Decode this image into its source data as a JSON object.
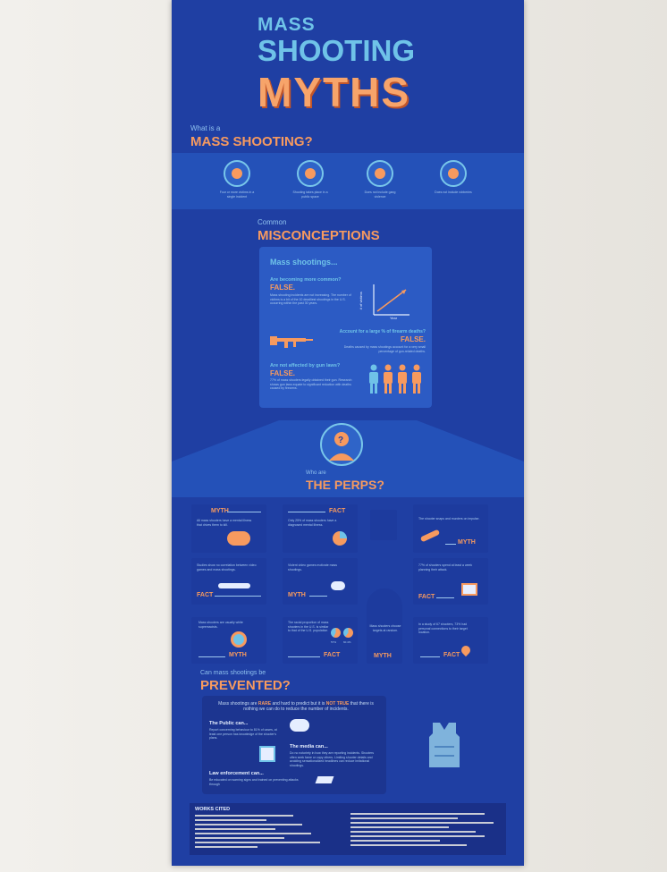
{
  "title": {
    "line1": "MASS",
    "line2": "SHOOTING",
    "line3": "MYTHS"
  },
  "definition": {
    "kicker": "What is a",
    "heading": "MASS SHOOTING?",
    "items": [
      {
        "icon": "four-victims-icon",
        "text": "Four or more victims in a single incident"
      },
      {
        "icon": "public-place-icon",
        "text": "Shooting takes place in a public space"
      },
      {
        "icon": "no-gang-icon",
        "text": "Does not include gang violence"
      },
      {
        "icon": "no-robbery-icon",
        "text": "Does not include robberies"
      }
    ]
  },
  "misconceptions": {
    "kicker": "Common",
    "heading": "MISCONCEPTIONS",
    "panel_title": "Mass shootings...",
    "q1": "Are becoming more common?",
    "a1": "FALSE.",
    "d1": "Mass shooting incidents are not increasing. The number of victims is a bit of the 10 deadliest shootings in the U.S. occurring within the past 30 years.",
    "graph_ylabel": "# of victims",
    "graph_xlabel": "Year",
    "q2": "Account for a large % of firearm deaths?",
    "a2": "FALSE.",
    "d2": "Deaths caused by mass shootings account for a very small percentage of gun-related deaths.",
    "q3": "Are not affected by gun laws?",
    "a3": "FALSE.",
    "d3": "77% of mass shooters legally obtained their gun. Research shows gun laws equate to significant reduction with deaths caused by firearms."
  },
  "perps": {
    "kicker": "Who are",
    "heading": "THE PERPS?",
    "cards": [
      {
        "tag": "MYTH",
        "text": "All mass shooters have a mental illness that drives them to kill."
      },
      {
        "tag": "FACT",
        "text": "Only 25% of mass shooters have a diagnosed mental illness."
      },
      {
        "tag": "MYTH",
        "text": "The shooter snaps and murders on impulse."
      },
      {
        "tag": "FACT",
        "text": "Studies show no correlation between video games and mass shootings."
      },
      {
        "tag": "MYTH",
        "text": "Violent video games motivate mass shootings."
      },
      {
        "tag": "FACT",
        "text": "77% of shooters spend at least a week planning their attack."
      },
      {
        "tag": "MYTH",
        "text": "Mass shooters are usually white supremacists."
      },
      {
        "tag": "FACT",
        "text": "The racial proportion of mass shooters in the U.S. is similar to that of the U.S. population"
      },
      {
        "tag": "MYTH",
        "text": "Mass shooters choose targets at random."
      },
      {
        "tag": "FACT",
        "text": "In a study of 67 shooters, 73% had personal connections to their target location."
      }
    ],
    "pie_labels": [
      "57%",
      "60.4%"
    ]
  },
  "prevention": {
    "kicker": "Can mass shootings be",
    "heading": "PREVENTED?",
    "intro_a": "Mass shootings are",
    "intro_rare": "RARE",
    "intro_b": "and hard to predict but it is",
    "intro_not_true": "NOT TRUE",
    "intro_c": "that there is nothing we can do to reduce the number of incidents.",
    "public_title": "The Public can...",
    "public_text": "Report concerning behaviour to 81% of cases, at least one person has knowledge of the shooter's plans.",
    "media_title": "The media can...",
    "media_text": "Do no notoriety in how they are reporting incidents. Shooters often seek fame or copy others. Limiting shooter details and avoiding sensationalized headlines can reduce imitational shootings.",
    "law_title": "Law enforcement can...",
    "law_text": "Be educated on warning signs and trained on preventing attacks through"
  },
  "works_cited": {
    "heading": "WORKS CITED"
  },
  "colors": {
    "poster_bg": "#1f3fa3",
    "band": "#2451b8",
    "accent_orange": "#f79a5f",
    "accent_light_blue": "#6fc3e8"
  }
}
